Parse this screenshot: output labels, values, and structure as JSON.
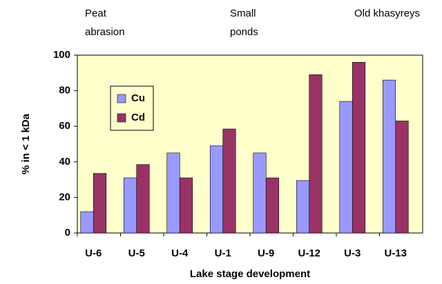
{
  "chart_data": {
    "type": "bar",
    "annotations": [
      [
        "Peat",
        "abrasion"
      ],
      [
        "Small",
        "ponds"
      ],
      [
        "Old khasyreys"
      ]
    ],
    "x_label": "Lake stage development",
    "y_label": "% in < 1 kDa",
    "categories": [
      "U-6",
      "U-5",
      "U-4",
      "U-1",
      "U-9",
      "U-12",
      "U-3",
      "U-13"
    ],
    "series": [
      {
        "name": "Cu",
        "color": "#9999ff",
        "values": [
          12,
          31,
          45,
          49,
          45,
          29.5,
          74,
          86
        ]
      },
      {
        "name": "Cd",
        "color": "#993366",
        "values": [
          33.5,
          38.5,
          31,
          58.5,
          31,
          89,
          96,
          63
        ]
      }
    ],
    "ylim": [
      0,
      100
    ],
    "yticks": [
      0,
      20,
      40,
      60,
      80,
      100
    ],
    "grid": false,
    "plot_background": "#ffffcc",
    "legend": "upper left"
  }
}
